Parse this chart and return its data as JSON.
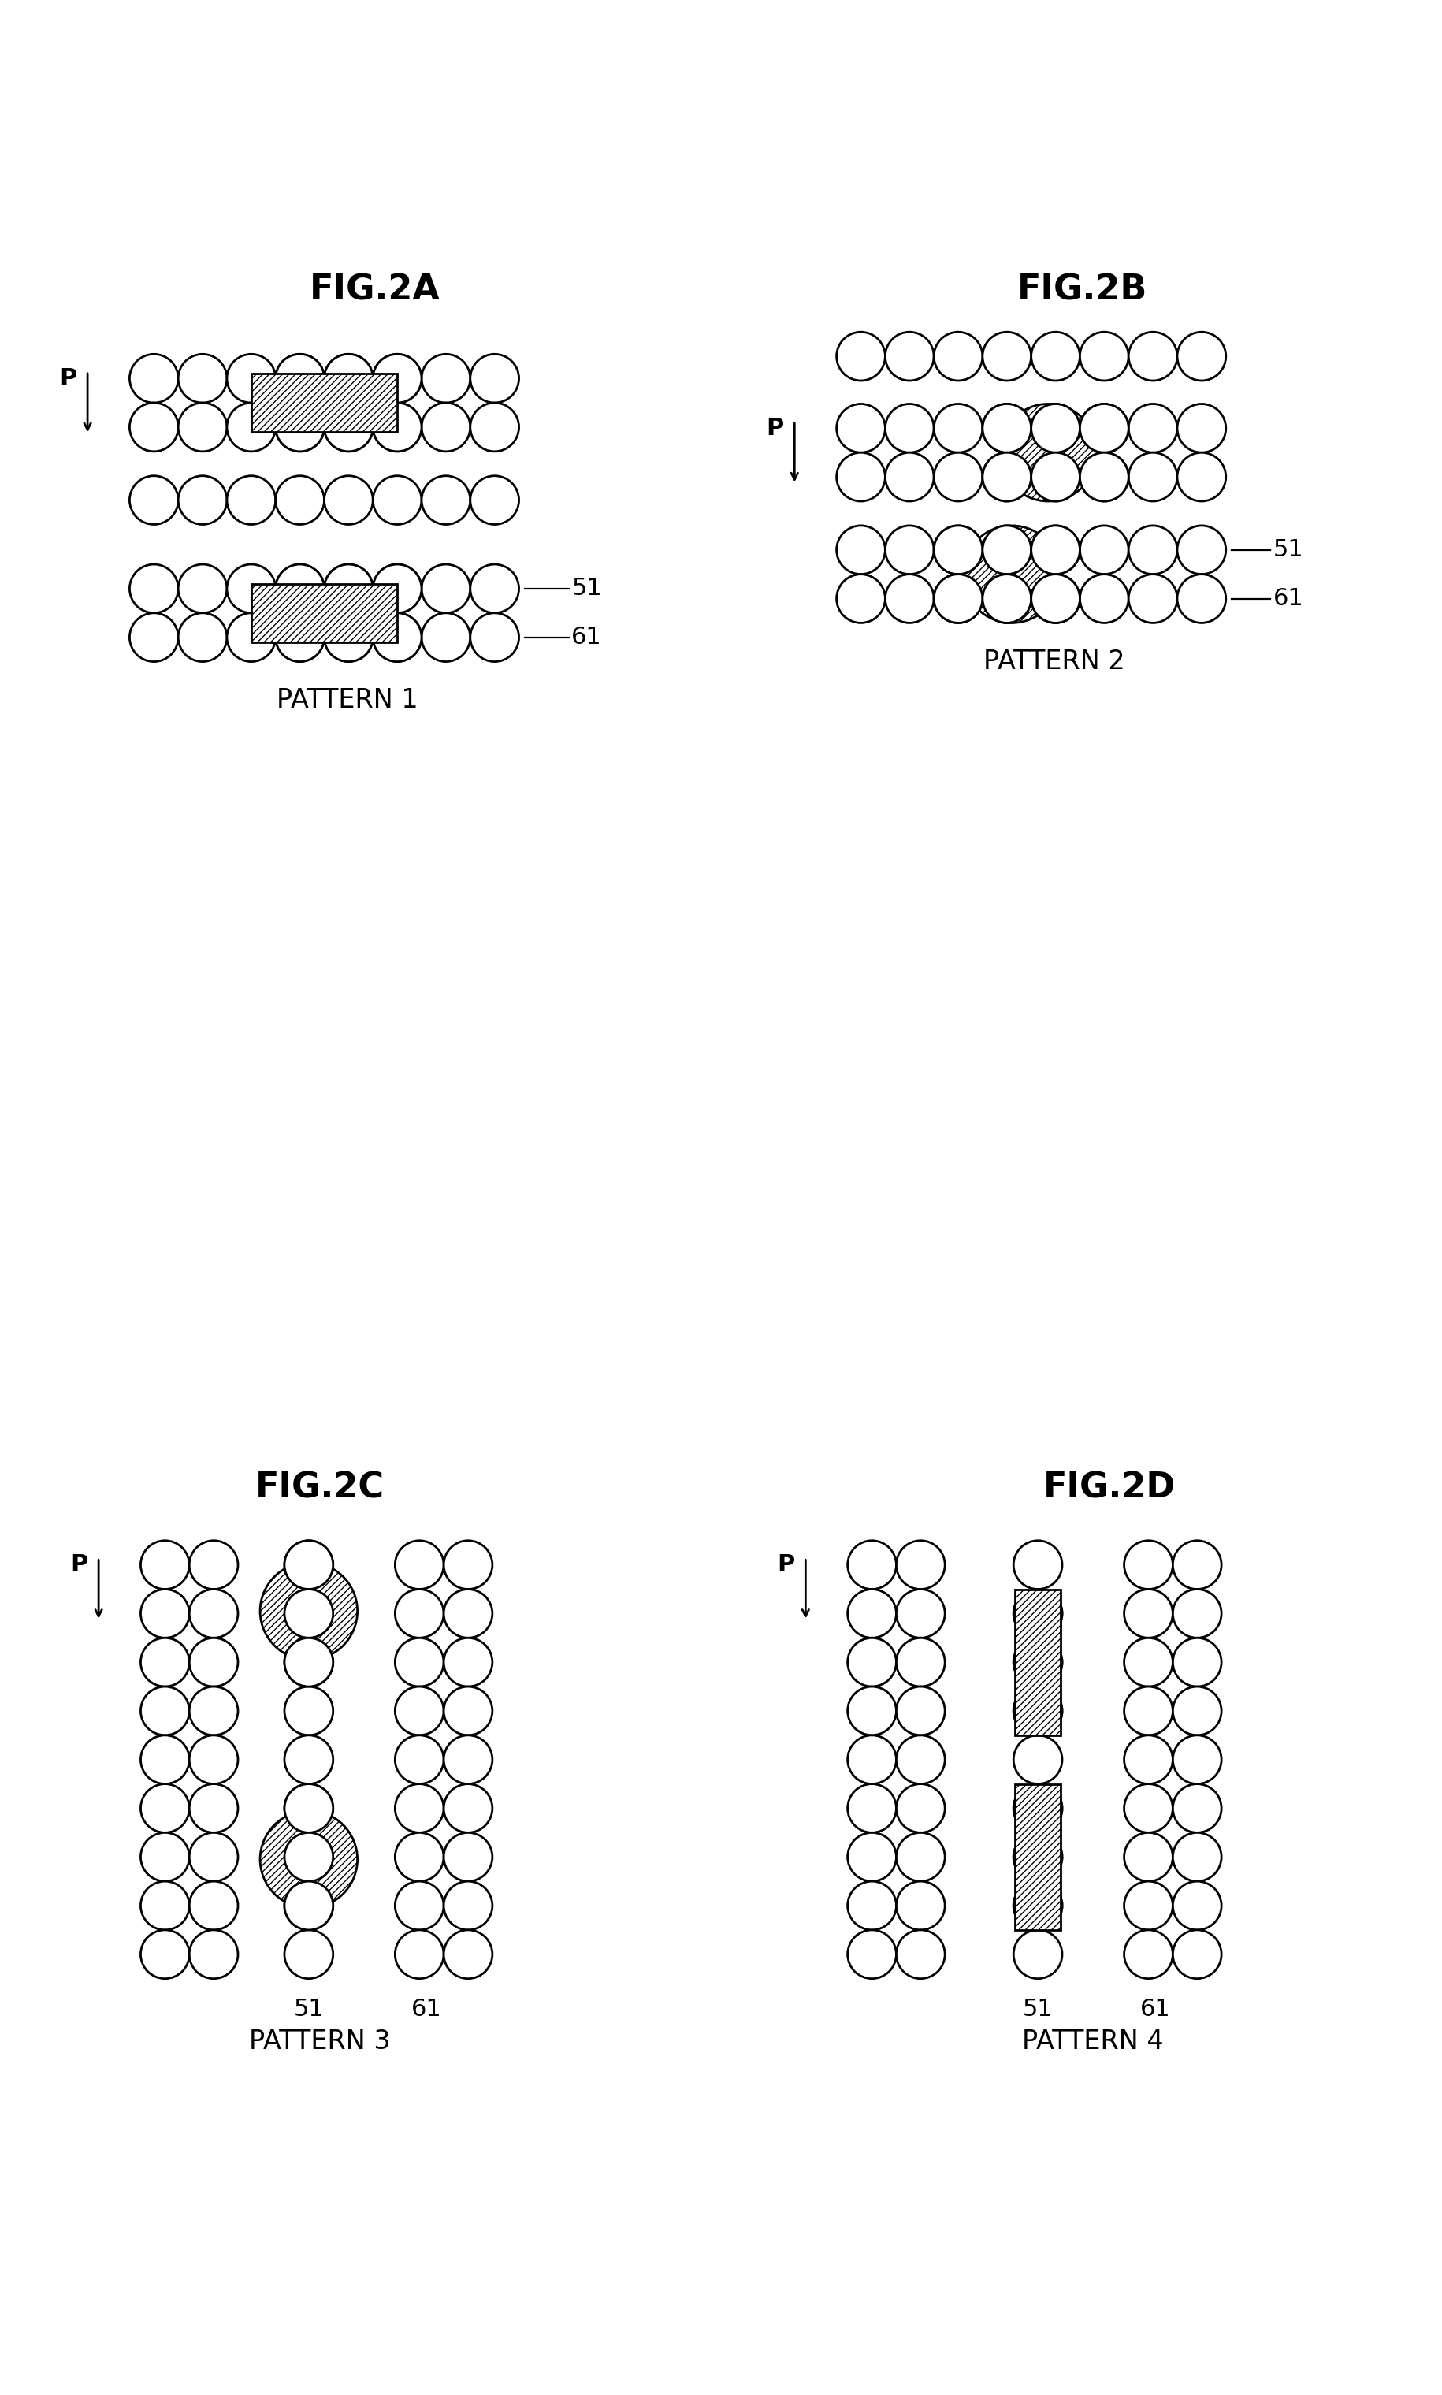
{
  "fig_titles": [
    "FIG.2A",
    "FIG.2B",
    "FIG.2C",
    "FIG.2D"
  ],
  "pattern_labels": [
    "PATTERN 1",
    "PATTERN 2",
    "PATTERN 3",
    "PATTERN 4"
  ],
  "label_51": "51",
  "label_61": "61",
  "label_P": "P",
  "bg_color": "#ffffff",
  "hatch_pattern": "////",
  "title_fontsize": 32,
  "label_fontsize": 22,
  "pattern_fontsize": 24,
  "lw": 2.0
}
